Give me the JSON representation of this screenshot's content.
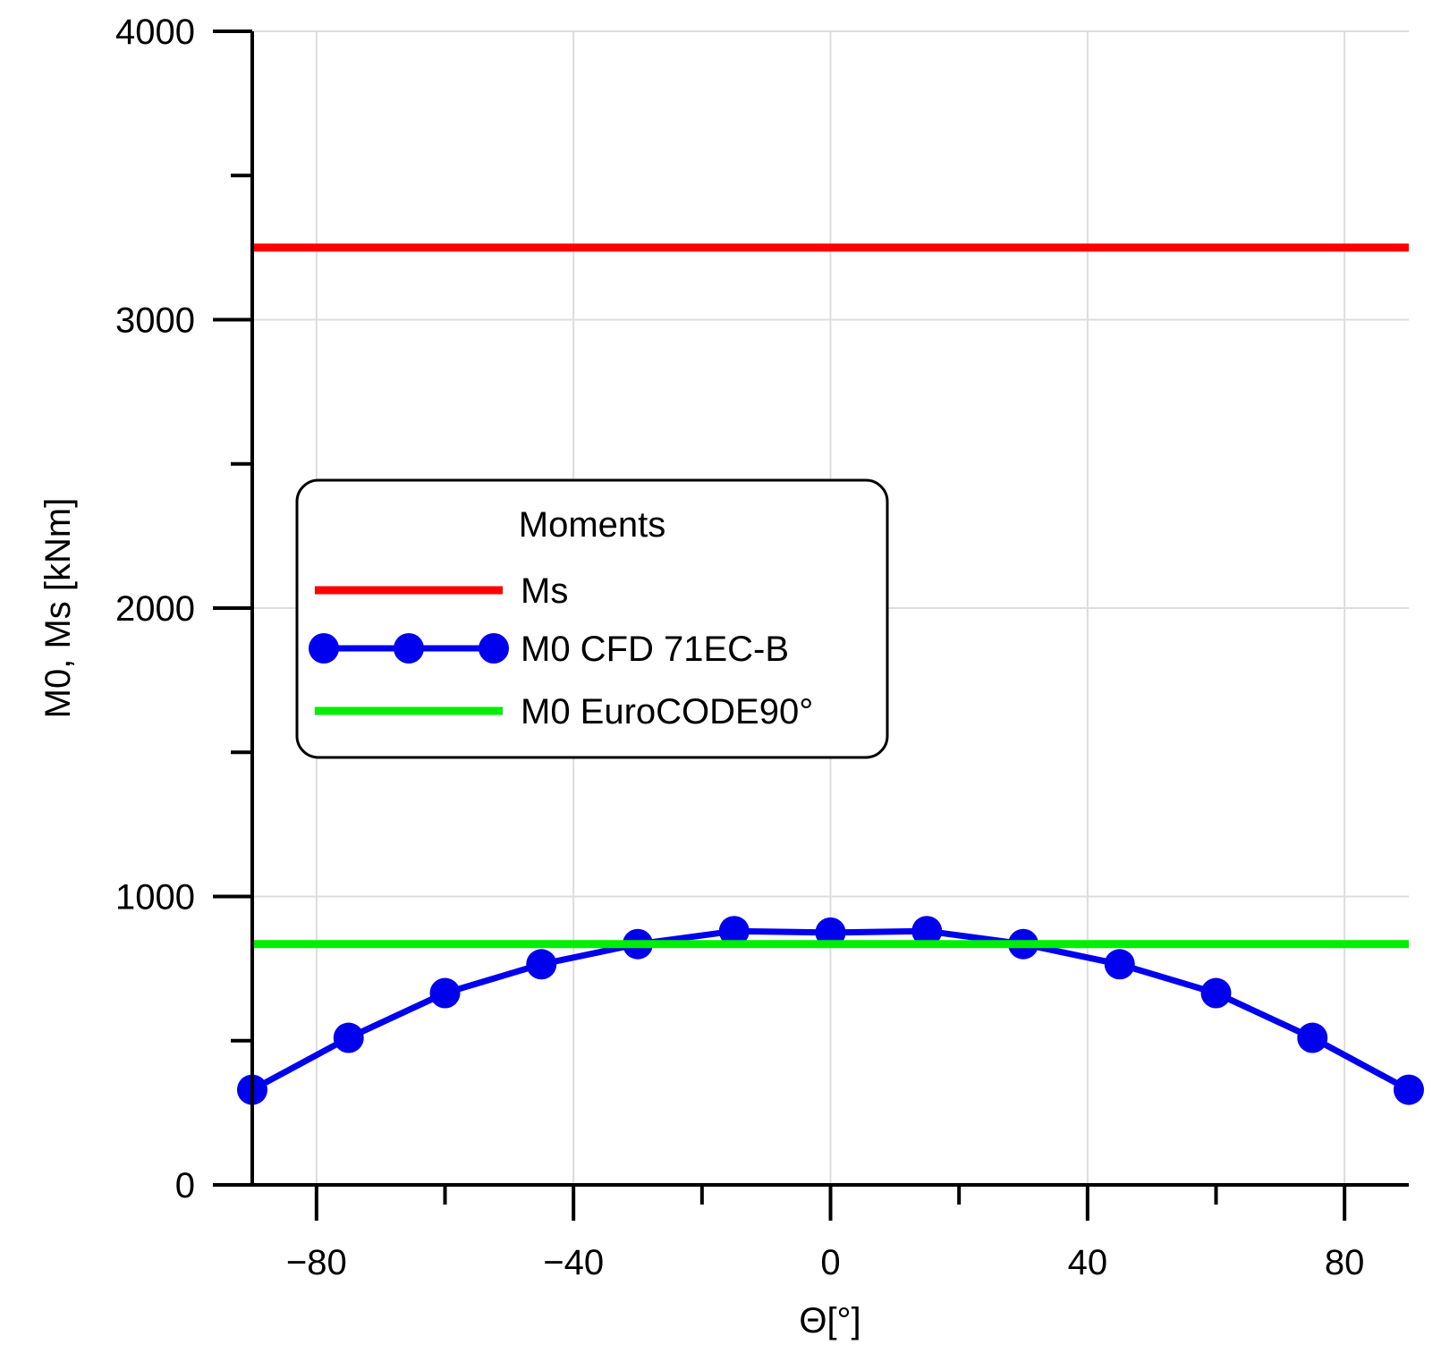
{
  "chart_data": {
    "type": "line",
    "title": "",
    "xlabel": "Θ[°]",
    "ylabel": "M0, Ms [kNm]",
    "xlim": [
      -90,
      90
    ],
    "ylim": [
      0,
      4000
    ],
    "x_ticks": [
      -80,
      -40,
      0,
      40,
      80
    ],
    "x_tick_labels": [
      "−80",
      "−40",
      "0",
      "40",
      "80"
    ],
    "x_minor_ticks": [
      -60,
      -20,
      20,
      60
    ],
    "y_ticks": [
      0,
      1000,
      2000,
      3000,
      4000
    ],
    "y_tick_labels": [
      "0",
      "1000",
      "2000",
      "3000",
      "4000"
    ],
    "y_minor_ticks": [
      500,
      1500,
      2500,
      3500
    ],
    "grid": true,
    "legend": {
      "title": "Moments",
      "placement": "center-left"
    },
    "series": [
      {
        "name": "Ms",
        "color": "#ff0000",
        "marker": "none",
        "x": [
          -90,
          90
        ],
        "y": [
          3250,
          3250
        ]
      },
      {
        "name": "M0 CFD 71EC-B",
        "color": "#0000ee",
        "marker": "circle",
        "x": [
          -90,
          -75,
          -60,
          -45,
          -30,
          -15,
          0,
          15,
          30,
          45,
          60,
          75,
          90
        ],
        "y": [
          330,
          510,
          665,
          765,
          835,
          880,
          875,
          880,
          835,
          765,
          665,
          510,
          330
        ]
      },
      {
        "name": "M0 EuroCODE90°",
        "color": "#00ee00",
        "marker": "none",
        "x": [
          -90,
          90
        ],
        "y": [
          835,
          835
        ]
      }
    ]
  }
}
